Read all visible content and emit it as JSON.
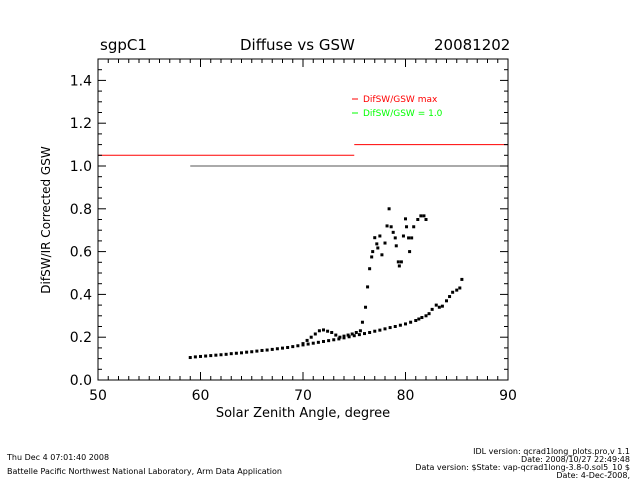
{
  "header": {
    "site": "sgpC1",
    "title": "Diffuse vs GSW",
    "date": "20081202"
  },
  "footer": {
    "timestamp": "Thu Dec  4 07:01:40 2008",
    "lab": "Battelle Pacific Northwest National Laboratory, Arm Data Application",
    "idl_version": "IDL version: qcrad1long_plots.pro,v 1.1",
    "idl_date": "Date: 2008/10/27 22:49:48",
    "data_version": "Data version: $State: vap-qcrad1long-3.8-0.sol5_10 $",
    "data_date": "Date: 4-Dec-2008,"
  },
  "chart_data": {
    "type": "scatter",
    "title": "Diffuse vs GSW",
    "xlabel": "Solar Zenith Angle, degree",
    "ylabel": "DifSW/IR Corrected GSW",
    "xlim": [
      50,
      90
    ],
    "ylim": [
      0,
      1.5
    ],
    "xticks": [
      "50",
      "60",
      "70",
      "80",
      "90"
    ],
    "yticks": [
      "0.0",
      "0.2",
      "0.4",
      "0.6",
      "0.8",
      "1.0",
      "1.2",
      "1.4"
    ],
    "grid": false,
    "legend": {
      "placement": "top-right",
      "entries": [
        {
          "label": "DifSW/GSW max",
          "color": "#ff0000"
        },
        {
          "label": "DifSW/GSW = 1.0",
          "color": "#00ff00"
        }
      ]
    },
    "reference_lines": [
      {
        "name": "max-limit-low-sza",
        "color": "#ff0000",
        "x": [
          50,
          75
        ],
        "y": 1.05
      },
      {
        "name": "max-limit-high-sza",
        "color": "#ff0000",
        "x": [
          75,
          90
        ],
        "y": 1.1
      },
      {
        "name": "ratio-one",
        "color": "#555555",
        "x": [
          59,
          90
        ],
        "y": 1.0
      }
    ],
    "series": [
      {
        "name": "lower-branch",
        "color": "#000000",
        "x": [
          59,
          59.5,
          60,
          60.5,
          61,
          61.5,
          62,
          62.5,
          63,
          63.5,
          64,
          64.5,
          65,
          65.5,
          66,
          66.5,
          67,
          67.5,
          68,
          68.5,
          69,
          69.5,
          70,
          70.5,
          71,
          71.5,
          72,
          72.5,
          73,
          73.5,
          74,
          74.5,
          75,
          75.5,
          76,
          76.5,
          77,
          77.5,
          78,
          78.5,
          79,
          79.5,
          80,
          80.5,
          81,
          81.3,
          81.6,
          82,
          82.3,
          82.6,
          83,
          83.3,
          83.6,
          84,
          84.3,
          84.6,
          85,
          85.3,
          85.5
        ],
        "y": [
          0.105,
          0.108,
          0.11,
          0.112,
          0.114,
          0.116,
          0.118,
          0.12,
          0.123,
          0.125,
          0.127,
          0.13,
          0.132,
          0.135,
          0.138,
          0.14,
          0.143,
          0.146,
          0.149,
          0.152,
          0.156,
          0.16,
          0.164,
          0.168,
          0.172,
          0.176,
          0.18,
          0.184,
          0.188,
          0.192,
          0.197,
          0.202,
          0.207,
          0.212,
          0.217,
          0.222,
          0.228,
          0.233,
          0.239,
          0.245,
          0.25,
          0.256,
          0.262,
          0.27,
          0.278,
          0.285,
          0.292,
          0.3,
          0.31,
          0.33,
          0.35,
          0.34,
          0.345,
          0.37,
          0.39,
          0.41,
          0.42,
          0.43,
          0.47
        ]
      },
      {
        "name": "upper-branch",
        "color": "#000000",
        "x": [
          70,
          70.4,
          70.8,
          71.2,
          71.6,
          72,
          72.4,
          72.8,
          73.2,
          73.6,
          74,
          74.4,
          74.8,
          75.2,
          75.6,
          75.8,
          76.1,
          76.3,
          76.5,
          76.7,
          76.8,
          77,
          77.2,
          77.3,
          77.5,
          77.7,
          78,
          78.2,
          78.4,
          78.6,
          78.8,
          79,
          79.1,
          79.3,
          79.4,
          79.6,
          79.8,
          80,
          80.1,
          80.3,
          80.4,
          80.6,
          80.8,
          81.2,
          81.5,
          81.8,
          82
        ],
        "y": [
          0.17,
          0.185,
          0.2,
          0.215,
          0.23,
          0.234,
          0.228,
          0.222,
          0.21,
          0.2,
          0.205,
          0.21,
          0.215,
          0.222,
          0.23,
          0.27,
          0.34,
          0.435,
          0.52,
          0.575,
          0.6,
          0.665,
          0.636,
          0.617,
          0.673,
          0.585,
          0.64,
          0.72,
          0.8,
          0.716,
          0.69,
          0.664,
          0.627,
          0.552,
          0.533,
          0.552,
          0.673,
          0.753,
          0.716,
          0.664,
          0.6,
          0.664,
          0.716,
          0.75,
          0.767,
          0.767,
          0.75
        ]
      }
    ]
  }
}
